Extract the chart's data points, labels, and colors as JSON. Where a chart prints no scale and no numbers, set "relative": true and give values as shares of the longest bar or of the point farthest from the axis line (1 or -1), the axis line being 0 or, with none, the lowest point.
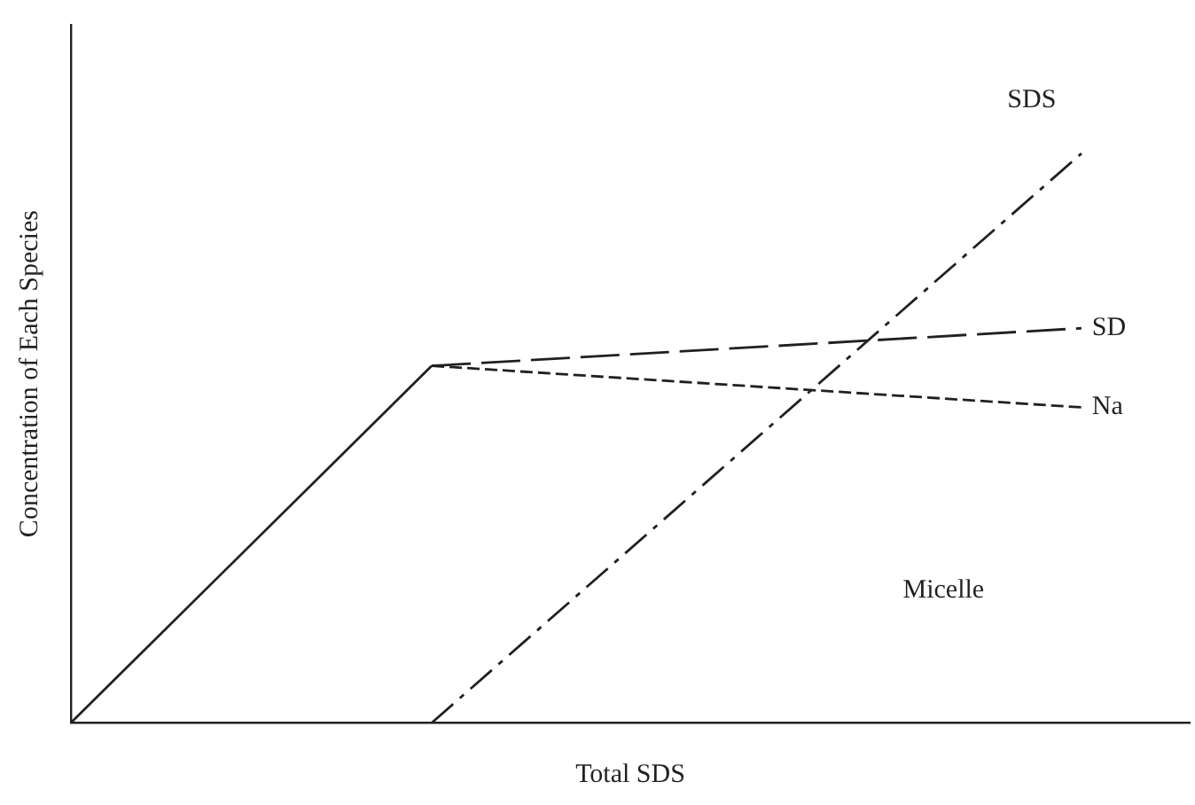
{
  "chart_data": {
    "type": "line",
    "relative": true,
    "xlabel": "Total SDS",
    "ylabel": "Concentration of Each Species",
    "annotations": [
      "Micelle"
    ],
    "legend": false,
    "grid": false,
    "marker": "none",
    "categories": [
      null,
      null,
      null,
      null,
      null,
      null,
      null,
      null,
      null,
      null,
      null,
      null,
      null,
      null,
      null,
      null,
      null,
      null,
      null,
      null,
      null,
      null,
      null,
      null,
      null,
      null,
      null,
      null,
      null,
      null,
      null,
      null
    ],
    "series": [
      {
        "color": "#231f20",
        "line_style": "solid",
        "values": [
          0,
          null,
          null,
          null,
          null,
          null,
          null,
          null,
          null,
          null,
          0.627,
          null,
          null,
          null,
          null,
          null,
          null,
          null,
          null,
          null,
          null,
          null,
          null,
          null,
          null,
          null,
          null,
          null,
          null,
          null,
          null,
          null
        ]
      },
      {
        "name": "SD",
        "color": "#231f20",
        "line_style": "dashed",
        "values": [
          null,
          null,
          null,
          null,
          null,
          null,
          null,
          null,
          null,
          null,
          0.627,
          null,
          null,
          null,
          null,
          null,
          null,
          null,
          null,
          null,
          null,
          null,
          null,
          null,
          null,
          null,
          null,
          null,
          0.693,
          null,
          null,
          null
        ]
      },
      {
        "name": "Na",
        "color": "#231f20",
        "line_style": "dotted",
        "values": [
          null,
          null,
          null,
          null,
          null,
          null,
          null,
          null,
          null,
          null,
          0.627,
          null,
          null,
          null,
          null,
          null,
          null,
          null,
          null,
          null,
          null,
          null,
          null,
          null,
          null,
          null,
          null,
          null,
          0.554,
          null,
          null,
          null
        ]
      },
      {
        "name": "SDS",
        "color": "#231f20",
        "line_style": "dashdot",
        "values": [
          null,
          null,
          null,
          null,
          null,
          null,
          null,
          null,
          null,
          null,
          0,
          null,
          null,
          null,
          null,
          null,
          null,
          null,
          null,
          null,
          null,
          null,
          null,
          null,
          null,
          null,
          null,
          null,
          1,
          null,
          null,
          null
        ]
      }
    ]
  }
}
